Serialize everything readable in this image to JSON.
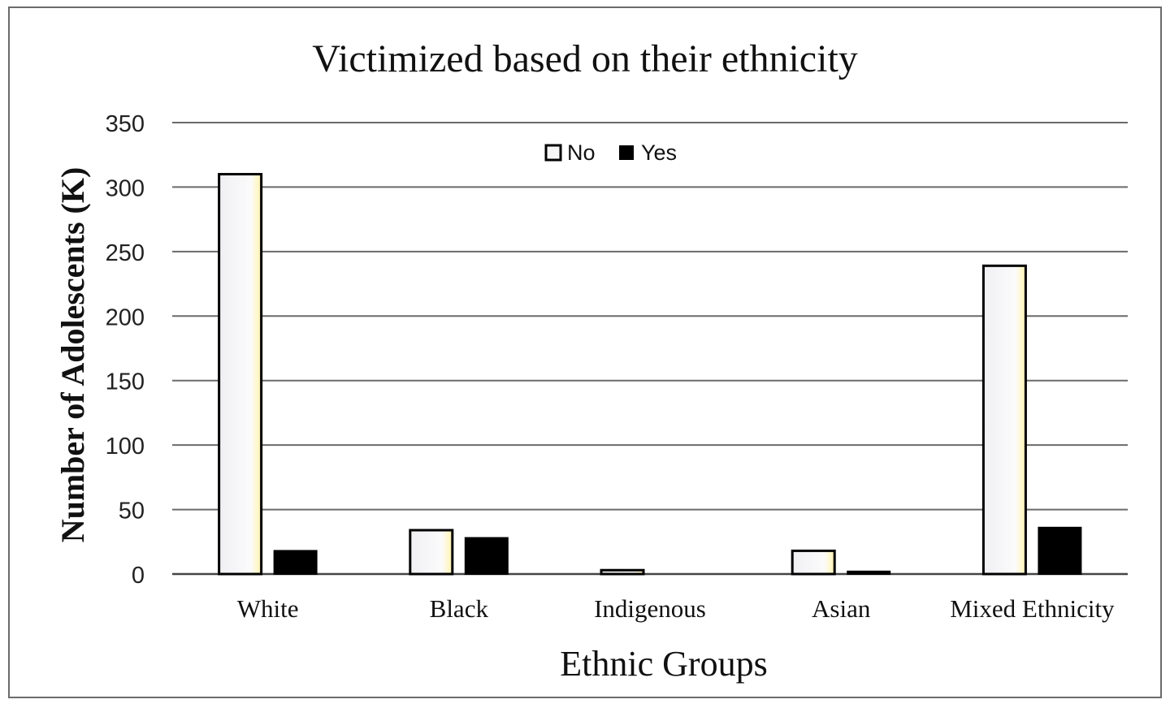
{
  "chart_data": {
    "type": "bar",
    "title": "Victimized based on their ethnicity",
    "xlabel": "Ethnic Groups",
    "ylabel": "Number of Adolescents (K)",
    "ylim": [
      0,
      350
    ],
    "yticks": [
      0,
      50,
      100,
      150,
      200,
      250,
      300,
      350
    ],
    "grid": true,
    "legend_position": "top-center",
    "categories": [
      "White",
      "Black",
      "Indigenous",
      "Asian",
      "Mixed Ethnicity"
    ],
    "series": [
      {
        "name": "No",
        "color": "#f4f4f6",
        "values": [
          310,
          34,
          3,
          18,
          239
        ]
      },
      {
        "name": "Yes",
        "color": "#000000",
        "values": [
          18,
          28,
          0,
          2,
          36
        ]
      }
    ]
  }
}
